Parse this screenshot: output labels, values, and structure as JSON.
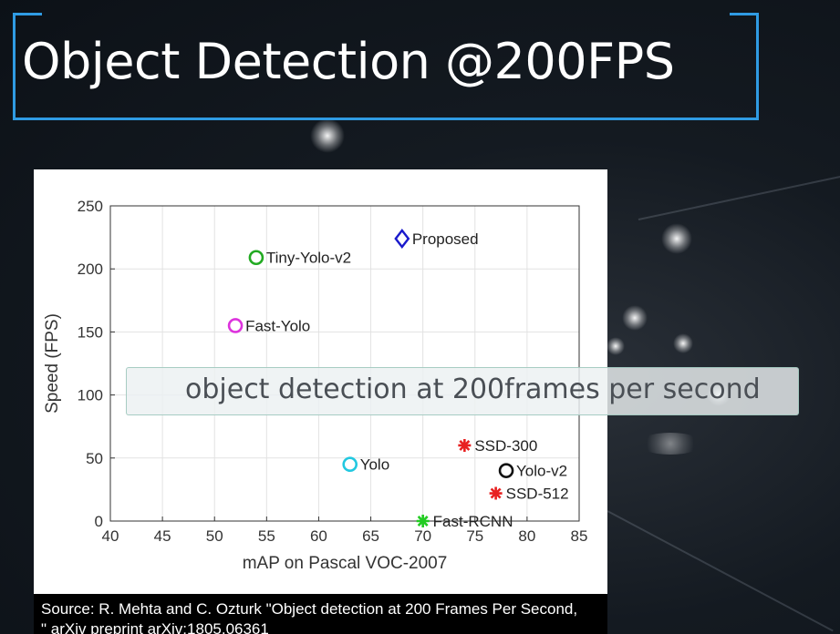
{
  "slide": {
    "title": "Object Detection @200FPS",
    "caption": "object detection at 200frames per second",
    "source_line1": "Source: R. Mehta and C. Ozturk \"Object detection at 200 Frames Per Second,",
    "source_line2": "\" arXiv preprint arXiv:1805.06361"
  },
  "colors": {
    "accent": "#2f9be3",
    "background": "#141a21"
  },
  "chart_data": {
    "type": "scatter",
    "xlabel": "mAP on Pascal VOC-2007",
    "ylabel": "Speed (FPS)",
    "xlim": [
      40,
      85
    ],
    "ylim": [
      0,
      250
    ],
    "xticks": [
      40,
      45,
      50,
      55,
      60,
      65,
      70,
      75,
      80,
      85
    ],
    "yticks": [
      0,
      50,
      100,
      150,
      200,
      250
    ],
    "grid": true,
    "points": [
      {
        "label": "Proposed",
        "x": 68,
        "y": 224,
        "marker": "diamond",
        "color": "#1a1acc"
      },
      {
        "label": "Tiny-Yolo-v2",
        "x": 54,
        "y": 209,
        "marker": "circle",
        "color": "#22aa22"
      },
      {
        "label": "Fast-Yolo",
        "x": 52,
        "y": 155,
        "marker": "circle",
        "color": "#dd33dd"
      },
      {
        "label": "Yolo",
        "x": 63,
        "y": 45,
        "marker": "circle",
        "color": "#22c8e0"
      },
      {
        "label": "SSD-300",
        "x": 74,
        "y": 60,
        "marker": "star",
        "color": "#e82020"
      },
      {
        "label": "Yolo-v2",
        "x": 78,
        "y": 40,
        "marker": "circle",
        "color": "#111111"
      },
      {
        "label": "SSD-512",
        "x": 77,
        "y": 22,
        "marker": "star",
        "color": "#e82020"
      },
      {
        "label": "Fast-RCNN",
        "x": 70,
        "y": 0,
        "marker": "star",
        "color": "#22cc22"
      }
    ]
  }
}
